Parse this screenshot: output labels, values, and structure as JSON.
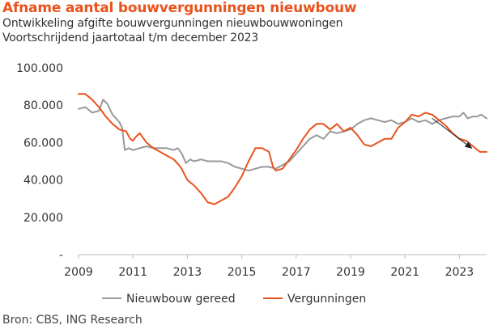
{
  "header": {
    "title": "Afname aantal bouwvergunningen nieuwbouw",
    "subtitle_line1": "Ontwikkeling afgifte bouwvergunningen nieuwbouwwoningen",
    "subtitle_line2": "Voortschrijdend jaartotaal t/m december 2023"
  },
  "footer": {
    "source": "Bron: CBS, ING Research"
  },
  "colors": {
    "gereed": "#999999",
    "vergunningen": "#e8531e",
    "axis": "#bbbbbb",
    "arrow": "#222222"
  },
  "chart_data": {
    "type": "line",
    "title": "Afname aantal bouwvergunningen nieuwbouw",
    "xlabel": "",
    "ylabel": "",
    "xlim": [
      2009,
      2024
    ],
    "ylim": [
      0,
      100000
    ],
    "x_ticks": [
      2009,
      2011,
      2013,
      2015,
      2017,
      2019,
      2021,
      2023
    ],
    "x_tick_labels": [
      "2009",
      "2011",
      "2013",
      "2015",
      "2017",
      "2019",
      "2021",
      "2023"
    ],
    "y_ticks": [
      0,
      20000,
      40000,
      60000,
      80000,
      100000
    ],
    "y_tick_labels": [
      "-",
      "20.000",
      "40.000",
      "60.000",
      "80.000",
      "100.000"
    ],
    "grid": false,
    "legend_position": "bottom",
    "series": [
      {
        "name": "Nieuwbouw gereed",
        "color": "#999999",
        "points": [
          [
            2009.0,
            78000
          ],
          [
            2009.25,
            79000
          ],
          [
            2009.5,
            76000
          ],
          [
            2009.75,
            77000
          ],
          [
            2009.9,
            83000
          ],
          [
            2010.05,
            81000
          ],
          [
            2010.25,
            75000
          ],
          [
            2010.5,
            71000
          ],
          [
            2010.6,
            68000
          ],
          [
            2010.7,
            56000
          ],
          [
            2010.85,
            57000
          ],
          [
            2011.0,
            56000
          ],
          [
            2011.25,
            57000
          ],
          [
            2011.5,
            58000
          ],
          [
            2011.75,
            57000
          ],
          [
            2012.0,
            57000
          ],
          [
            2012.25,
            57000
          ],
          [
            2012.5,
            56000
          ],
          [
            2012.65,
            57000
          ],
          [
            2012.8,
            54000
          ],
          [
            2012.95,
            49000
          ],
          [
            2013.1,
            51000
          ],
          [
            2013.25,
            50000
          ],
          [
            2013.5,
            51000
          ],
          [
            2013.75,
            50000
          ],
          [
            2014.0,
            50000
          ],
          [
            2014.25,
            50000
          ],
          [
            2014.5,
            49000
          ],
          [
            2014.75,
            47000
          ],
          [
            2015.0,
            46000
          ],
          [
            2015.25,
            45000
          ],
          [
            2015.5,
            46000
          ],
          [
            2015.75,
            47000
          ],
          [
            2016.0,
            47000
          ],
          [
            2016.25,
            46000
          ],
          [
            2016.5,
            48000
          ],
          [
            2016.75,
            50000
          ],
          [
            2017.0,
            54000
          ],
          [
            2017.25,
            58000
          ],
          [
            2017.5,
            62000
          ],
          [
            2017.75,
            64000
          ],
          [
            2018.0,
            62000
          ],
          [
            2018.25,
            66000
          ],
          [
            2018.5,
            65000
          ],
          [
            2018.75,
            66000
          ],
          [
            2019.0,
            67000
          ],
          [
            2019.25,
            70000
          ],
          [
            2019.5,
            72000
          ],
          [
            2019.75,
            73000
          ],
          [
            2020.0,
            72000
          ],
          [
            2020.25,
            71000
          ],
          [
            2020.5,
            72000
          ],
          [
            2020.75,
            70000
          ],
          [
            2021.0,
            71000
          ],
          [
            2021.25,
            73000
          ],
          [
            2021.5,
            71000
          ],
          [
            2021.75,
            72000
          ],
          [
            2022.0,
            70000
          ],
          [
            2022.25,
            72000
          ],
          [
            2022.5,
            73000
          ],
          [
            2022.75,
            74000
          ],
          [
            2023.0,
            74000
          ],
          [
            2023.15,
            76000
          ],
          [
            2023.3,
            73000
          ],
          [
            2023.5,
            74000
          ],
          [
            2023.65,
            74000
          ],
          [
            2023.8,
            75000
          ],
          [
            2024.0,
            73000
          ]
        ]
      },
      {
        "name": "Vergunningen",
        "color": "#e8531e",
        "points": [
          [
            2009.0,
            86000
          ],
          [
            2009.25,
            86000
          ],
          [
            2009.5,
            83000
          ],
          [
            2009.75,
            79000
          ],
          [
            2010.0,
            74000
          ],
          [
            2010.25,
            70000
          ],
          [
            2010.5,
            67000
          ],
          [
            2010.75,
            66000
          ],
          [
            2010.9,
            62000
          ],
          [
            2011.0,
            61000
          ],
          [
            2011.1,
            63000
          ],
          [
            2011.25,
            65000
          ],
          [
            2011.5,
            60000
          ],
          [
            2011.75,
            57000
          ],
          [
            2012.0,
            55000
          ],
          [
            2012.25,
            53000
          ],
          [
            2012.5,
            51000
          ],
          [
            2012.75,
            47000
          ],
          [
            2013.0,
            40000
          ],
          [
            2013.25,
            37000
          ],
          [
            2013.5,
            33000
          ],
          [
            2013.75,
            28000
          ],
          [
            2014.0,
            27000
          ],
          [
            2014.25,
            29000
          ],
          [
            2014.5,
            31000
          ],
          [
            2014.75,
            36000
          ],
          [
            2015.0,
            42000
          ],
          [
            2015.25,
            50000
          ],
          [
            2015.5,
            57000
          ],
          [
            2015.75,
            57000
          ],
          [
            2016.0,
            55000
          ],
          [
            2016.15,
            47000
          ],
          [
            2016.25,
            45000
          ],
          [
            2016.5,
            46000
          ],
          [
            2016.75,
            51000
          ],
          [
            2017.0,
            56000
          ],
          [
            2017.25,
            62000
          ],
          [
            2017.5,
            67000
          ],
          [
            2017.75,
            70000
          ],
          [
            2018.0,
            70000
          ],
          [
            2018.25,
            67000
          ],
          [
            2018.5,
            70000
          ],
          [
            2018.75,
            66000
          ],
          [
            2019.0,
            68000
          ],
          [
            2019.25,
            64000
          ],
          [
            2019.5,
            59000
          ],
          [
            2019.75,
            58000
          ],
          [
            2020.0,
            60000
          ],
          [
            2020.25,
            62000
          ],
          [
            2020.5,
            62000
          ],
          [
            2020.75,
            68000
          ],
          [
            2021.0,
            71000
          ],
          [
            2021.25,
            75000
          ],
          [
            2021.5,
            74000
          ],
          [
            2021.75,
            76000
          ],
          [
            2022.0,
            75000
          ],
          [
            2022.25,
            72000
          ],
          [
            2022.5,
            69000
          ],
          [
            2022.75,
            65000
          ],
          [
            2023.0,
            62000
          ],
          [
            2023.25,
            61000
          ],
          [
            2023.5,
            58000
          ],
          [
            2023.75,
            55000
          ],
          [
            2024.0,
            55000
          ]
        ]
      }
    ],
    "annotations": [
      {
        "type": "arrow",
        "from": [
          2022.0,
          73000
        ],
        "to": [
          2023.45,
          57000
        ]
      }
    ]
  }
}
